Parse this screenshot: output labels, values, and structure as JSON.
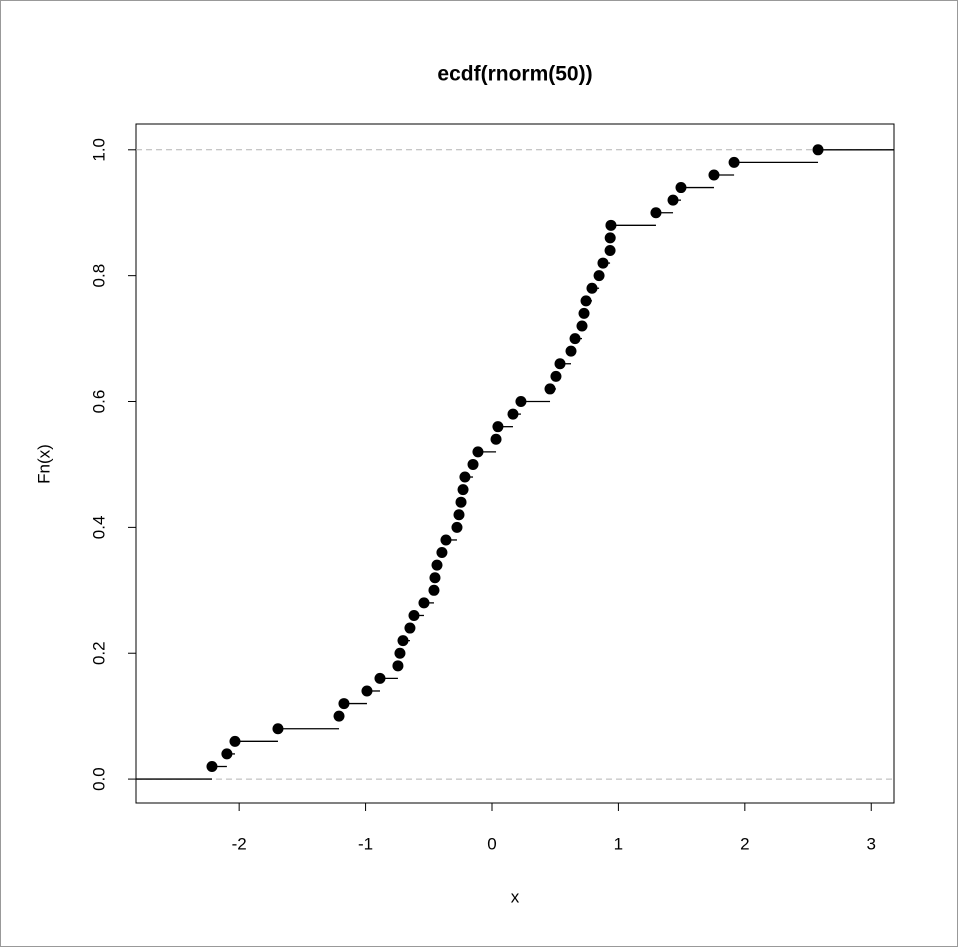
{
  "chart_data": {
    "type": "ecdf",
    "title": "ecdf(rnorm(50))",
    "x_label": "x",
    "y_label": "Fn(x)",
    "x": [
      -2.215,
      -2.097,
      -2.033,
      -1.693,
      -1.21,
      -1.171,
      -0.989,
      -0.886,
      -0.744,
      -0.728,
      -0.704,
      -0.649,
      -0.617,
      -0.538,
      -0.459,
      -0.451,
      -0.435,
      -0.396,
      -0.364,
      -0.277,
      -0.261,
      -0.245,
      -0.229,
      -0.214,
      -0.15,
      -0.111,
      0.032,
      0.047,
      0.166,
      0.229,
      0.459,
      0.506,
      0.538,
      0.625,
      0.657,
      0.712,
      0.728,
      0.744,
      0.791,
      0.847,
      0.878,
      0.934,
      0.935,
      0.941,
      1.297,
      1.432,
      1.495,
      1.756,
      1.915,
      2.579
    ],
    "values": [
      0.02,
      0.04,
      0.06,
      0.08,
      0.1,
      0.12,
      0.14,
      0.16,
      0.18,
      0.2,
      0.22,
      0.24,
      0.26,
      0.28,
      0.3,
      0.32,
      0.34,
      0.36,
      0.38,
      0.4,
      0.42,
      0.44,
      0.46,
      0.48,
      0.5,
      0.52,
      0.54,
      0.56,
      0.58,
      0.6,
      0.62,
      0.64,
      0.66,
      0.68,
      0.7,
      0.72,
      0.74,
      0.76,
      0.78,
      0.8,
      0.82,
      0.84,
      0.86,
      0.88,
      0.9,
      0.92,
      0.94,
      0.96,
      0.98,
      1
    ],
    "color": "#000000",
    "hlines": [
      0,
      1
    ],
    "hline_color": "#b3b3b3",
    "xlim": [
      -2.816,
      3.18
    ],
    "ylim": [
      -0.038,
      1.041
    ],
    "xticks": [
      -2,
      -1,
      0,
      1,
      2,
      3
    ],
    "yticks": [
      {
        "value": 0,
        "label": "0.0"
      },
      {
        "value": 0.2,
        "label": "0.2"
      },
      {
        "value": 0.4,
        "label": "0.4"
      },
      {
        "value": 0.6,
        "label": "0.6"
      },
      {
        "value": 0.8,
        "label": "0.8"
      },
      {
        "value": 1,
        "label": "1.0"
      }
    ]
  }
}
